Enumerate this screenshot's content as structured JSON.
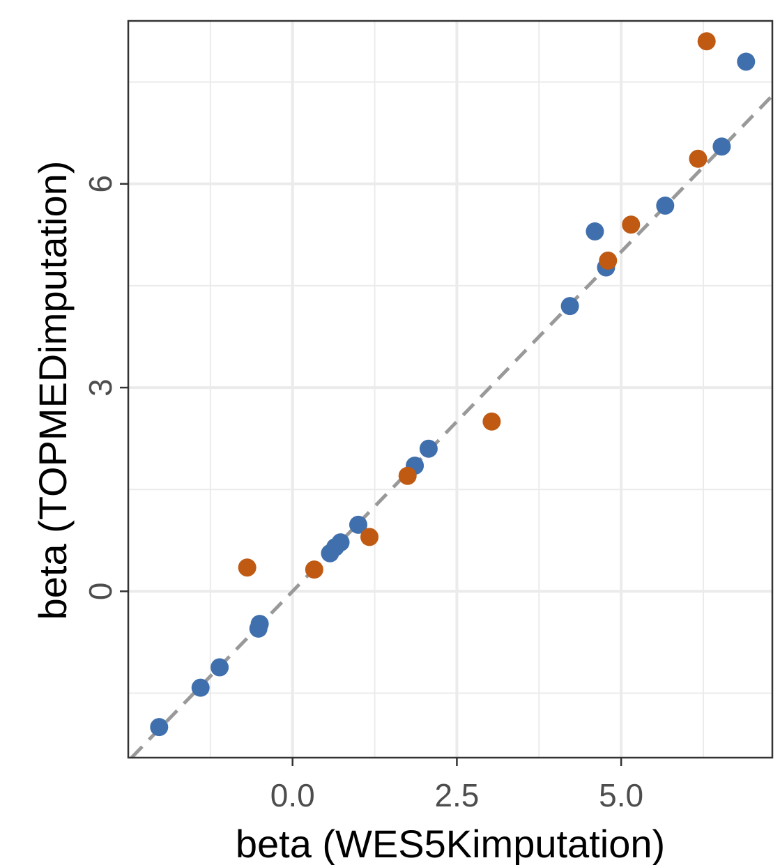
{
  "colors": {
    "series_blue": "#3f6fad",
    "series_orange": "#c05a12",
    "grid": "#ebebeb",
    "reference_line": "#999999",
    "panel_border": "#333333"
  },
  "chart_data": {
    "type": "scatter",
    "title": "",
    "xlabel": "beta (WES5Kimputation)",
    "ylabel": "beta (TOPMEDimputation)",
    "xlim": [
      -2.5,
      7.3
    ],
    "ylim": [
      -2.45,
      8.4
    ],
    "x_ticks": [
      0.0,
      2.5,
      5.0
    ],
    "x_tick_labels": [
      "0.0",
      "2.5",
      "5.0"
    ],
    "y_ticks": [
      0,
      3,
      6
    ],
    "y_tick_labels": [
      "0",
      "3",
      "6"
    ],
    "grid": true,
    "legend": "none",
    "reference_line": {
      "style": "dashed",
      "slope": 1,
      "intercept": 0
    },
    "series": [
      {
        "color": "#3f6fad",
        "points": [
          [
            -2.03,
            -2.0
          ],
          [
            -1.4,
            -1.42
          ],
          [
            -1.11,
            -1.12
          ],
          [
            -0.52,
            -0.55
          ],
          [
            -0.5,
            -0.48
          ],
          [
            0.57,
            0.56
          ],
          [
            0.65,
            0.65
          ],
          [
            0.73,
            0.72
          ],
          [
            1.0,
            0.98
          ],
          [
            1.86,
            1.85
          ],
          [
            2.07,
            2.1
          ],
          [
            4.22,
            4.2
          ],
          [
            4.6,
            5.3
          ],
          [
            4.77,
            4.77
          ],
          [
            5.67,
            5.68
          ],
          [
            6.53,
            6.55
          ],
          [
            6.9,
            7.8
          ]
        ]
      },
      {
        "color": "#c05a12",
        "points": [
          [
            -0.69,
            0.35
          ],
          [
            0.33,
            0.32
          ],
          [
            1.17,
            0.8
          ],
          [
            1.75,
            1.7
          ],
          [
            3.03,
            2.5
          ],
          [
            4.8,
            4.87
          ],
          [
            5.15,
            5.4
          ],
          [
            6.17,
            6.37
          ],
          [
            6.3,
            8.1
          ]
        ]
      }
    ]
  }
}
